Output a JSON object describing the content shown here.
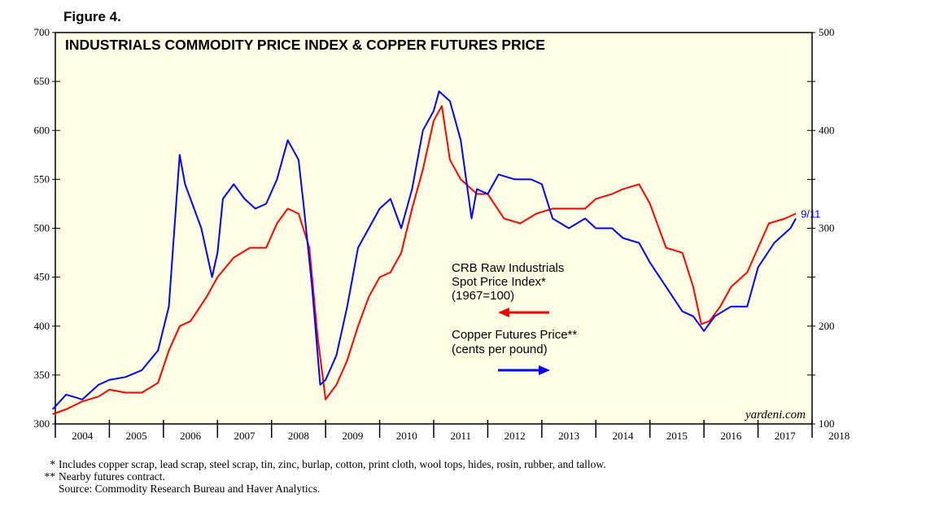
{
  "figure_label": "Figure 4.",
  "chart_data": {
    "type": "line",
    "title": "INDUSTRIALS COMMODITY PRICE INDEX & COPPER FUTURES PRICE",
    "x_ticks": [
      "2004",
      "2005",
      "2006",
      "2007",
      "2008",
      "2009",
      "2010",
      "2011",
      "2012",
      "2013",
      "2014",
      "2015",
      "2016",
      "2017",
      "2018"
    ],
    "xlim": [
      2004,
      2018
    ],
    "left_axis": {
      "ylim": [
        300,
        700
      ],
      "ticks": [
        "300",
        "350",
        "400",
        "450",
        "500",
        "550",
        "600",
        "650",
        "700"
      ]
    },
    "right_axis": {
      "ylim": [
        100,
        500
      ],
      "ticks": [
        "100",
        "200",
        "300",
        "400",
        "500"
      ]
    },
    "series": [
      {
        "name": "CRB Raw Industrials Spot Price Index* (1967=100)",
        "label_lines": [
          "CRB Raw Industrials",
          "Spot Price Index*",
          "(1967=100)"
        ],
        "color": "#ff0000",
        "axis": "left",
        "arrow": "left",
        "x": [
          2003.95,
          2004.2,
          2004.5,
          2004.8,
          2005.0,
          2005.3,
          2005.6,
          2005.9,
          2006.1,
          2006.3,
          2006.5,
          2006.8,
          2007.0,
          2007.3,
          2007.6,
          2007.9,
          2008.1,
          2008.3,
          2008.5,
          2008.7,
          2008.85,
          2009.0,
          2009.2,
          2009.4,
          2009.6,
          2009.8,
          2010.0,
          2010.2,
          2010.4,
          2010.6,
          2010.8,
          2011.0,
          2011.15,
          2011.3,
          2011.5,
          2011.8,
          2012.0,
          2012.3,
          2012.6,
          2012.9,
          2013.2,
          2013.5,
          2013.8,
          2014.0,
          2014.3,
          2014.5,
          2014.8,
          2015.0,
          2015.3,
          2015.6,
          2015.8,
          2015.95,
          2016.1,
          2016.3,
          2016.5,
          2016.8,
          2017.0,
          2017.2,
          2017.5,
          2017.7
        ],
        "y": [
          310,
          315,
          323,
          328,
          335,
          332,
          332,
          342,
          375,
          400,
          405,
          430,
          450,
          470,
          480,
          480,
          505,
          520,
          515,
          480,
          390,
          325,
          340,
          365,
          400,
          430,
          450,
          455,
          475,
          520,
          560,
          610,
          625,
          570,
          550,
          535,
          535,
          510,
          505,
          515,
          520,
          520,
          520,
          530,
          535,
          540,
          545,
          525,
          480,
          475,
          440,
          402,
          405,
          420,
          440,
          455,
          480,
          505,
          510,
          515
        ]
      },
      {
        "name": "Copper Futures Price** (cents per pound)",
        "label_lines": [
          "Copper Futures Price**",
          "(cents per pound)"
        ],
        "color": "#0000ff",
        "axis": "right",
        "arrow": "right",
        "end_label": "9/11",
        "x": [
          2003.95,
          2004.2,
          2004.5,
          2004.8,
          2005.0,
          2005.3,
          2005.6,
          2005.9,
          2006.1,
          2006.3,
          2006.4,
          2006.5,
          2006.7,
          2006.9,
          2007.0,
          2007.1,
          2007.3,
          2007.5,
          2007.7,
          2007.9,
          2008.1,
          2008.3,
          2008.5,
          2008.6,
          2008.75,
          2008.9,
          2009.0,
          2009.2,
          2009.4,
          2009.6,
          2009.8,
          2010.0,
          2010.2,
          2010.4,
          2010.6,
          2010.8,
          2011.0,
          2011.1,
          2011.3,
          2011.5,
          2011.7,
          2011.8,
          2012.0,
          2012.2,
          2012.5,
          2012.8,
          2013.0,
          2013.2,
          2013.5,
          2013.8,
          2014.0,
          2014.3,
          2014.5,
          2014.8,
          2015.0,
          2015.3,
          2015.6,
          2015.8,
          2016.0,
          2016.2,
          2016.5,
          2016.8,
          2017.0,
          2017.3,
          2017.6,
          2017.7
        ],
        "y": [
          115,
          130,
          125,
          140,
          145,
          148,
          155,
          175,
          220,
          375,
          345,
          330,
          300,
          250,
          275,
          330,
          345,
          330,
          320,
          325,
          350,
          390,
          370,
          320,
          240,
          140,
          145,
          170,
          220,
          280,
          300,
          320,
          330,
          300,
          340,
          400,
          420,
          440,
          430,
          390,
          310,
          340,
          335,
          355,
          350,
          350,
          345,
          310,
          300,
          310,
          300,
          300,
          290,
          285,
          265,
          240,
          215,
          210,
          195,
          210,
          220,
          220,
          260,
          285,
          300,
          310
        ]
      }
    ],
    "watermark": "yardeni.com"
  },
  "footnotes": [
    {
      "mark": "*",
      "text": "Includes copper scrap, lead scrap, steel scrap, tin, zinc, burlap, cotton, print cloth, wool tops, hides, rosin, rubber, and tallow."
    },
    {
      "mark": "**",
      "text": "Nearby futures contract."
    },
    {
      "mark": "",
      "text": "Source: Commodity Research Bureau and Haver Analytics."
    }
  ]
}
